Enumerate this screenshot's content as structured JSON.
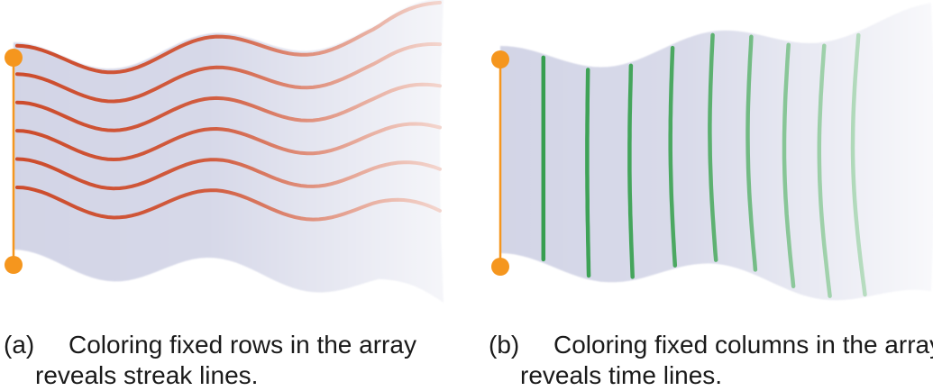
{
  "panels": [
    {
      "tag": "(a)",
      "caption_line1": "Coloring fixed rows in the array",
      "caption_line2": "reveals streak lines.",
      "line_color": "#cc4a2a",
      "line_orientation": "rows",
      "line_count": 6
    },
    {
      "tag": "(b)",
      "caption_line1": "Coloring fixed columns in the array",
      "caption_line2": "reveals time lines.",
      "line_color": "#2e9a48",
      "line_orientation": "columns",
      "line_count": 9
    }
  ],
  "colors": {
    "flag_fill": "#d2d4e6",
    "pole_and_dots": "#f5961e",
    "caption_text": "#1a1a1a"
  }
}
